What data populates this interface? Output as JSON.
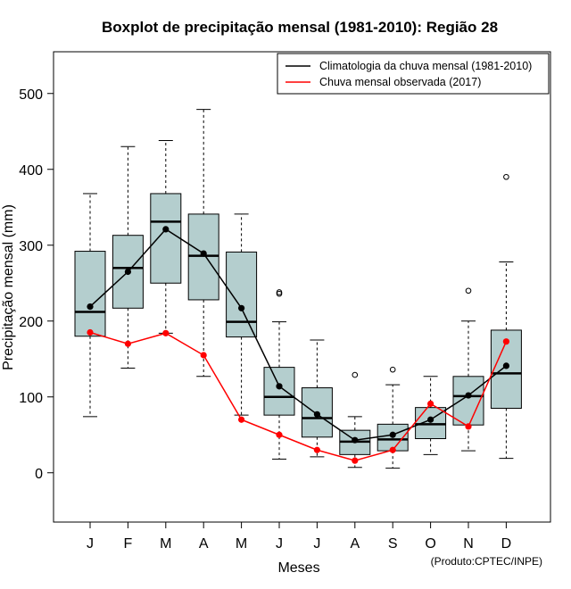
{
  "chart_data": {
    "type": "boxplot",
    "title": "Boxplot de precipitação mensal (1981-2010): Região 28",
    "xlabel": "Meses",
    "ylabel": "Precipitação mensal (mm)",
    "categories": [
      "J",
      "F",
      "M",
      "A",
      "M",
      "J",
      "J",
      "A",
      "S",
      "O",
      "N",
      "D"
    ],
    "ylim": [
      -65,
      555
    ],
    "yticks": [
      0,
      100,
      200,
      300,
      400,
      500
    ],
    "boxes": [
      {
        "min": 74,
        "q1": 180,
        "median": 212,
        "q3": 292,
        "max": 368,
        "outliers": []
      },
      {
        "min": 138,
        "q1": 217,
        "median": 270,
        "q3": 313,
        "max": 430,
        "outliers": []
      },
      {
        "min": 184,
        "q1": 250,
        "median": 331,
        "q3": 368,
        "max": 438,
        "outliers": []
      },
      {
        "min": 127,
        "q1": 228,
        "median": 286,
        "q3": 341,
        "max": 479,
        "outliers": []
      },
      {
        "min": 76,
        "q1": 179,
        "median": 199,
        "q3": 291,
        "max": 341,
        "outliers": []
      },
      {
        "min": 18,
        "q1": 76,
        "median": 100,
        "q3": 139,
        "max": 199,
        "outliers": [
          236,
          238
        ]
      },
      {
        "min": 21,
        "q1": 47,
        "median": 72,
        "q3": 112,
        "max": 175,
        "outliers": []
      },
      {
        "min": 7,
        "q1": 24,
        "median": 41,
        "q3": 56,
        "max": 74,
        "outliers": [
          129
        ]
      },
      {
        "min": 6,
        "q1": 29,
        "median": 44,
        "q3": 64,
        "max": 116,
        "outliers": [
          136
        ]
      },
      {
        "min": 24,
        "q1": 45,
        "median": 64,
        "q3": 86,
        "max": 127,
        "outliers": []
      },
      {
        "min": 29,
        "q1": 63,
        "median": 101,
        "q3": 127,
        "max": 200,
        "outliers": [
          240
        ]
      },
      {
        "min": 19,
        "q1": 85,
        "median": 131,
        "q3": 188,
        "max": 278,
        "outliers": [
          390
        ]
      }
    ],
    "series": [
      {
        "name": "Climatologia da chuva mensal (1981-2010)",
        "color": "#000000",
        "values": [
          219,
          265,
          321,
          289,
          217,
          114,
          77,
          43,
          50,
          70,
          102,
          141
        ]
      },
      {
        "name": "Chuva mensal observada (2017)",
        "color": "#ff0000",
        "values": [
          185,
          170,
          184,
          155,
          70,
          50,
          30,
          16,
          30,
          91,
          61,
          173
        ]
      }
    ],
    "legend_position": "top-right",
    "box_fill": "#b4cece",
    "credit": "(Produto:CPTEC/INPE)"
  }
}
